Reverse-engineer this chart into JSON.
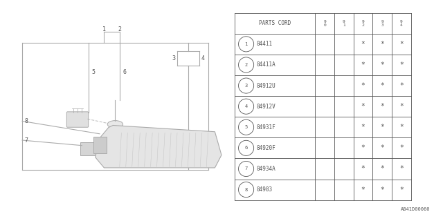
{
  "bg_color": "#ffffff",
  "line_color": "#aaaaaa",
  "text_color": "#555555",
  "table": {
    "header_label": "PARTS CORD",
    "year_labels": [
      "9\n0",
      "9\n1",
      "9\n2",
      "9\n3",
      "9\n4"
    ],
    "rows": [
      {
        "num": "1",
        "code": "84411",
        "stars": [
          false,
          false,
          true,
          true,
          true
        ]
      },
      {
        "num": "2",
        "code": "84411A",
        "stars": [
          false,
          false,
          true,
          true,
          true
        ]
      },
      {
        "num": "3",
        "code": "84912U",
        "stars": [
          false,
          false,
          true,
          true,
          true
        ]
      },
      {
        "num": "4",
        "code": "84912V",
        "stars": [
          false,
          false,
          true,
          true,
          true
        ]
      },
      {
        "num": "5",
        "code": "84931F",
        "stars": [
          false,
          false,
          true,
          true,
          true
        ]
      },
      {
        "num": "6",
        "code": "84920F",
        "stars": [
          false,
          false,
          true,
          true,
          true
        ]
      },
      {
        "num": "7",
        "code": "84934A",
        "stars": [
          false,
          false,
          true,
          true,
          true
        ]
      },
      {
        "num": "8",
        "code": "84983",
        "stars": [
          false,
          false,
          true,
          true,
          true
        ]
      }
    ]
  },
  "footer_text": "A841D00060"
}
